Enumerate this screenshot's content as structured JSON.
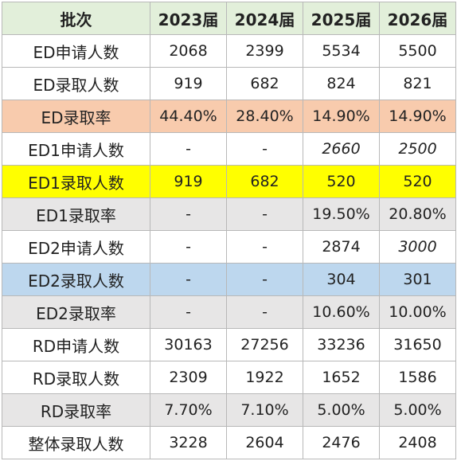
{
  "table": {
    "headers": [
      "批次",
      "2023届",
      "2024届",
      "2025届",
      "2026届"
    ],
    "rows": [
      {
        "label": "ED申请人数",
        "values": [
          "2068",
          "2399",
          "5534",
          "5500"
        ],
        "italic": [
          false,
          false,
          false,
          false
        ],
        "bg": "white"
      },
      {
        "label": "ED录取人数",
        "values": [
          "919",
          "682",
          "824",
          "821"
        ],
        "italic": [
          false,
          false,
          false,
          false
        ],
        "bg": "white"
      },
      {
        "label": "ED录取率",
        "values": [
          "44.40%",
          "28.40%",
          "14.90%",
          "14.90%"
        ],
        "italic": [
          false,
          false,
          false,
          false
        ],
        "bg": "salmon"
      },
      {
        "label": "ED1申请人数",
        "values": [
          "-",
          "-",
          "2660",
          "2500"
        ],
        "italic": [
          false,
          false,
          true,
          true
        ],
        "bg": "white"
      },
      {
        "label": "ED1录取人数",
        "values": [
          "919",
          "682",
          "520",
          "520"
        ],
        "italic": [
          false,
          false,
          false,
          false
        ],
        "bg": "yellow"
      },
      {
        "label": "ED1录取率",
        "values": [
          "-",
          "-",
          "19.50%",
          "20.80%"
        ],
        "italic": [
          false,
          false,
          false,
          false
        ],
        "bg": "gray"
      },
      {
        "label": "ED2申请人数",
        "values": [
          "-",
          "-",
          "2874",
          "3000"
        ],
        "italic": [
          false,
          false,
          false,
          true
        ],
        "bg": "white"
      },
      {
        "label": "ED2录取人数",
        "values": [
          "-",
          "-",
          "304",
          "301"
        ],
        "italic": [
          false,
          false,
          false,
          false
        ],
        "bg": "blue"
      },
      {
        "label": "ED2录取率",
        "values": [
          "-",
          "-",
          "10.60%",
          "10.00%"
        ],
        "italic": [
          false,
          false,
          false,
          false
        ],
        "bg": "gray"
      },
      {
        "label": "RD申请人数",
        "values": [
          "30163",
          "27256",
          "33236",
          "31650"
        ],
        "italic": [
          false,
          false,
          false,
          false
        ],
        "bg": "white"
      },
      {
        "label": "RD录取人数",
        "values": [
          "2309",
          "1922",
          "1652",
          "1586"
        ],
        "italic": [
          false,
          false,
          false,
          false
        ],
        "bg": "white"
      },
      {
        "label": "RD录取率",
        "values": [
          "7.70%",
          "7.10%",
          "5.00%",
          "5.00%"
        ],
        "italic": [
          false,
          false,
          false,
          false
        ],
        "bg": "gray"
      },
      {
        "label": "整体录取人数",
        "values": [
          "3228",
          "2604",
          "2476",
          "2408"
        ],
        "italic": [
          false,
          false,
          false,
          false
        ],
        "bg": "white"
      }
    ]
  },
  "colors": {
    "header": "#e2efda",
    "white": "#ffffff",
    "salmon": "#f8cbad",
    "yellow": "#ffff00",
    "gray": "#e7e6e6",
    "blue": "#bdd7ee",
    "border": "#b8b8b8"
  }
}
